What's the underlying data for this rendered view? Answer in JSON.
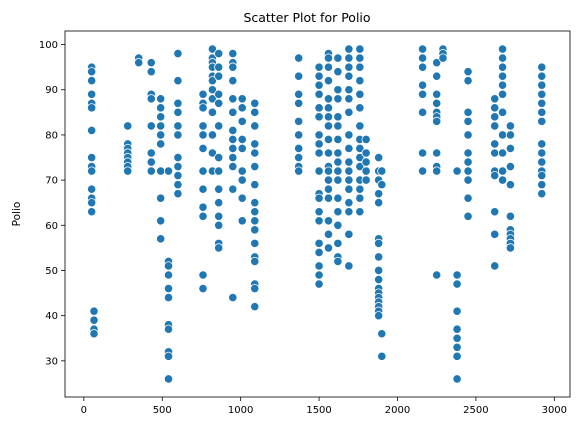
{
  "chart_data": {
    "type": "scatter",
    "title": "Scatter Plot for Polio",
    "xlabel": "",
    "ylabel": "Polio",
    "xlim": [
      -120,
      3100
    ],
    "ylim": [
      22,
      103
    ],
    "xticks": [
      0,
      500,
      1000,
      1500,
      2000,
      2500,
      3000
    ],
    "yticks": [
      30,
      40,
      50,
      60,
      70,
      80,
      90,
      100
    ],
    "grid": false,
    "legend": "none",
    "marker_color": "#1f77b4",
    "columns": [
      {
        "x": 50,
        "y": [
          95,
          94,
          92,
          89,
          87,
          86,
          81,
          75,
          73,
          72,
          68,
          66,
          65,
          63
        ]
      },
      {
        "x": 65,
        "y": [
          41,
          39,
          37,
          36
        ]
      },
      {
        "x": 280,
        "y": [
          82,
          78,
          77,
          76,
          75,
          74,
          73,
          72
        ]
      },
      {
        "x": 350,
        "y": [
          97,
          96
        ]
      },
      {
        "x": 430,
        "y": [
          96,
          94,
          89,
          88,
          82,
          76,
          74,
          72
        ]
      },
      {
        "x": 490,
        "y": [
          88,
          86,
          84,
          82,
          80,
          78,
          72,
          66,
          61,
          57
        ]
      },
      {
        "x": 540,
        "y": [
          52,
          51,
          49,
          46,
          44,
          38,
          37,
          32,
          31,
          26,
          72
        ]
      },
      {
        "x": 600,
        "y": [
          98,
          92,
          87,
          85,
          82,
          80,
          75,
          73,
          71,
          69,
          67
        ]
      },
      {
        "x": 760,
        "y": [
          89,
          87,
          86,
          82,
          80,
          77,
          72,
          68,
          64,
          62,
          49,
          46
        ]
      },
      {
        "x": 820,
        "y": [
          99,
          97,
          96,
          95,
          93,
          92,
          90,
          88,
          85,
          80,
          76,
          72
        ]
      },
      {
        "x": 860,
        "y": [
          98,
          95,
          93,
          89,
          87,
          82,
          75,
          72,
          68,
          65,
          62,
          60,
          56,
          55
        ]
      },
      {
        "x": 950,
        "y": [
          98,
          96,
          95,
          92,
          88,
          85,
          81,
          79,
          77,
          75,
          73,
          68,
          44
        ]
      },
      {
        "x": 1010,
        "y": [
          88,
          86,
          83,
          79,
          77,
          72,
          70,
          66,
          61
        ]
      },
      {
        "x": 1090,
        "y": [
          87,
          85,
          82,
          78,
          76,
          73,
          69,
          65,
          63,
          61,
          59,
          56,
          53,
          52,
          47,
          46,
          42
        ]
      },
      {
        "x": 1370,
        "y": [
          97,
          93,
          89,
          87,
          83,
          80,
          77,
          75,
          73,
          72
        ]
      },
      {
        "x": 1500,
        "y": [
          95,
          93,
          91,
          89,
          86,
          84,
          80,
          78,
          76,
          72,
          67,
          66,
          63,
          61,
          56,
          54,
          51,
          49,
          47
        ]
      },
      {
        "x": 1560,
        "y": [
          98,
          97,
          95,
          92,
          88,
          86,
          84,
          82,
          79,
          76,
          73,
          72,
          70,
          68,
          66,
          61,
          58,
          55
        ]
      },
      {
        "x": 1620,
        "y": [
          97,
          94,
          90,
          88,
          84,
          82,
          79,
          76,
          74,
          72,
          70,
          66,
          63,
          60,
          56,
          53,
          52
        ]
      },
      {
        "x": 1690,
        "y": [
          99,
          97,
          95,
          93,
          90,
          88,
          85,
          80,
          77,
          74,
          72,
          70,
          68,
          65,
          63,
          58,
          51
        ]
      },
      {
        "x": 1760,
        "y": [
          99,
          97,
          95,
          92,
          89,
          86,
          82,
          79,
          77,
          75,
          73,
          70,
          68,
          66,
          63
        ]
      },
      {
        "x": 1800,
        "y": [
          79,
          76,
          74,
          72,
          70
        ]
      },
      {
        "x": 1880,
        "y": [
          75,
          72,
          70,
          67,
          65,
          57,
          56,
          53,
          50,
          48,
          46,
          45,
          44,
          43,
          42,
          41,
          40
        ]
      },
      {
        "x": 1900,
        "y": [
          72,
          69,
          36,
          31
        ]
      },
      {
        "x": 2160,
        "y": [
          99,
          97,
          95,
          91,
          89,
          85,
          76,
          72
        ]
      },
      {
        "x": 2250,
        "y": [
          96,
          93,
          89,
          87,
          85,
          84,
          83,
          76,
          73,
          72,
          49
        ]
      },
      {
        "x": 2290,
        "y": [
          99,
          98,
          97
        ]
      },
      {
        "x": 2380,
        "y": [
          72,
          49,
          47,
          41,
          37,
          35,
          33,
          31,
          26
        ]
      },
      {
        "x": 2450,
        "y": [
          94,
          92,
          85,
          83,
          80,
          76,
          74,
          72,
          70,
          66,
          62
        ]
      },
      {
        "x": 2620,
        "y": [
          88,
          86,
          84,
          82,
          78,
          76,
          72,
          71,
          63,
          58,
          51
        ]
      },
      {
        "x": 2670,
        "y": [
          99,
          97,
          95,
          93,
          91,
          89,
          85,
          80,
          76,
          72,
          70
        ]
      },
      {
        "x": 2720,
        "y": [
          82,
          80,
          77,
          73,
          69,
          62,
          59,
          58,
          57,
          56,
          55
        ]
      },
      {
        "x": 2920,
        "y": [
          95,
          93,
          91,
          89,
          87,
          85,
          83,
          78,
          76,
          74,
          72,
          71,
          69,
          67
        ]
      }
    ]
  }
}
